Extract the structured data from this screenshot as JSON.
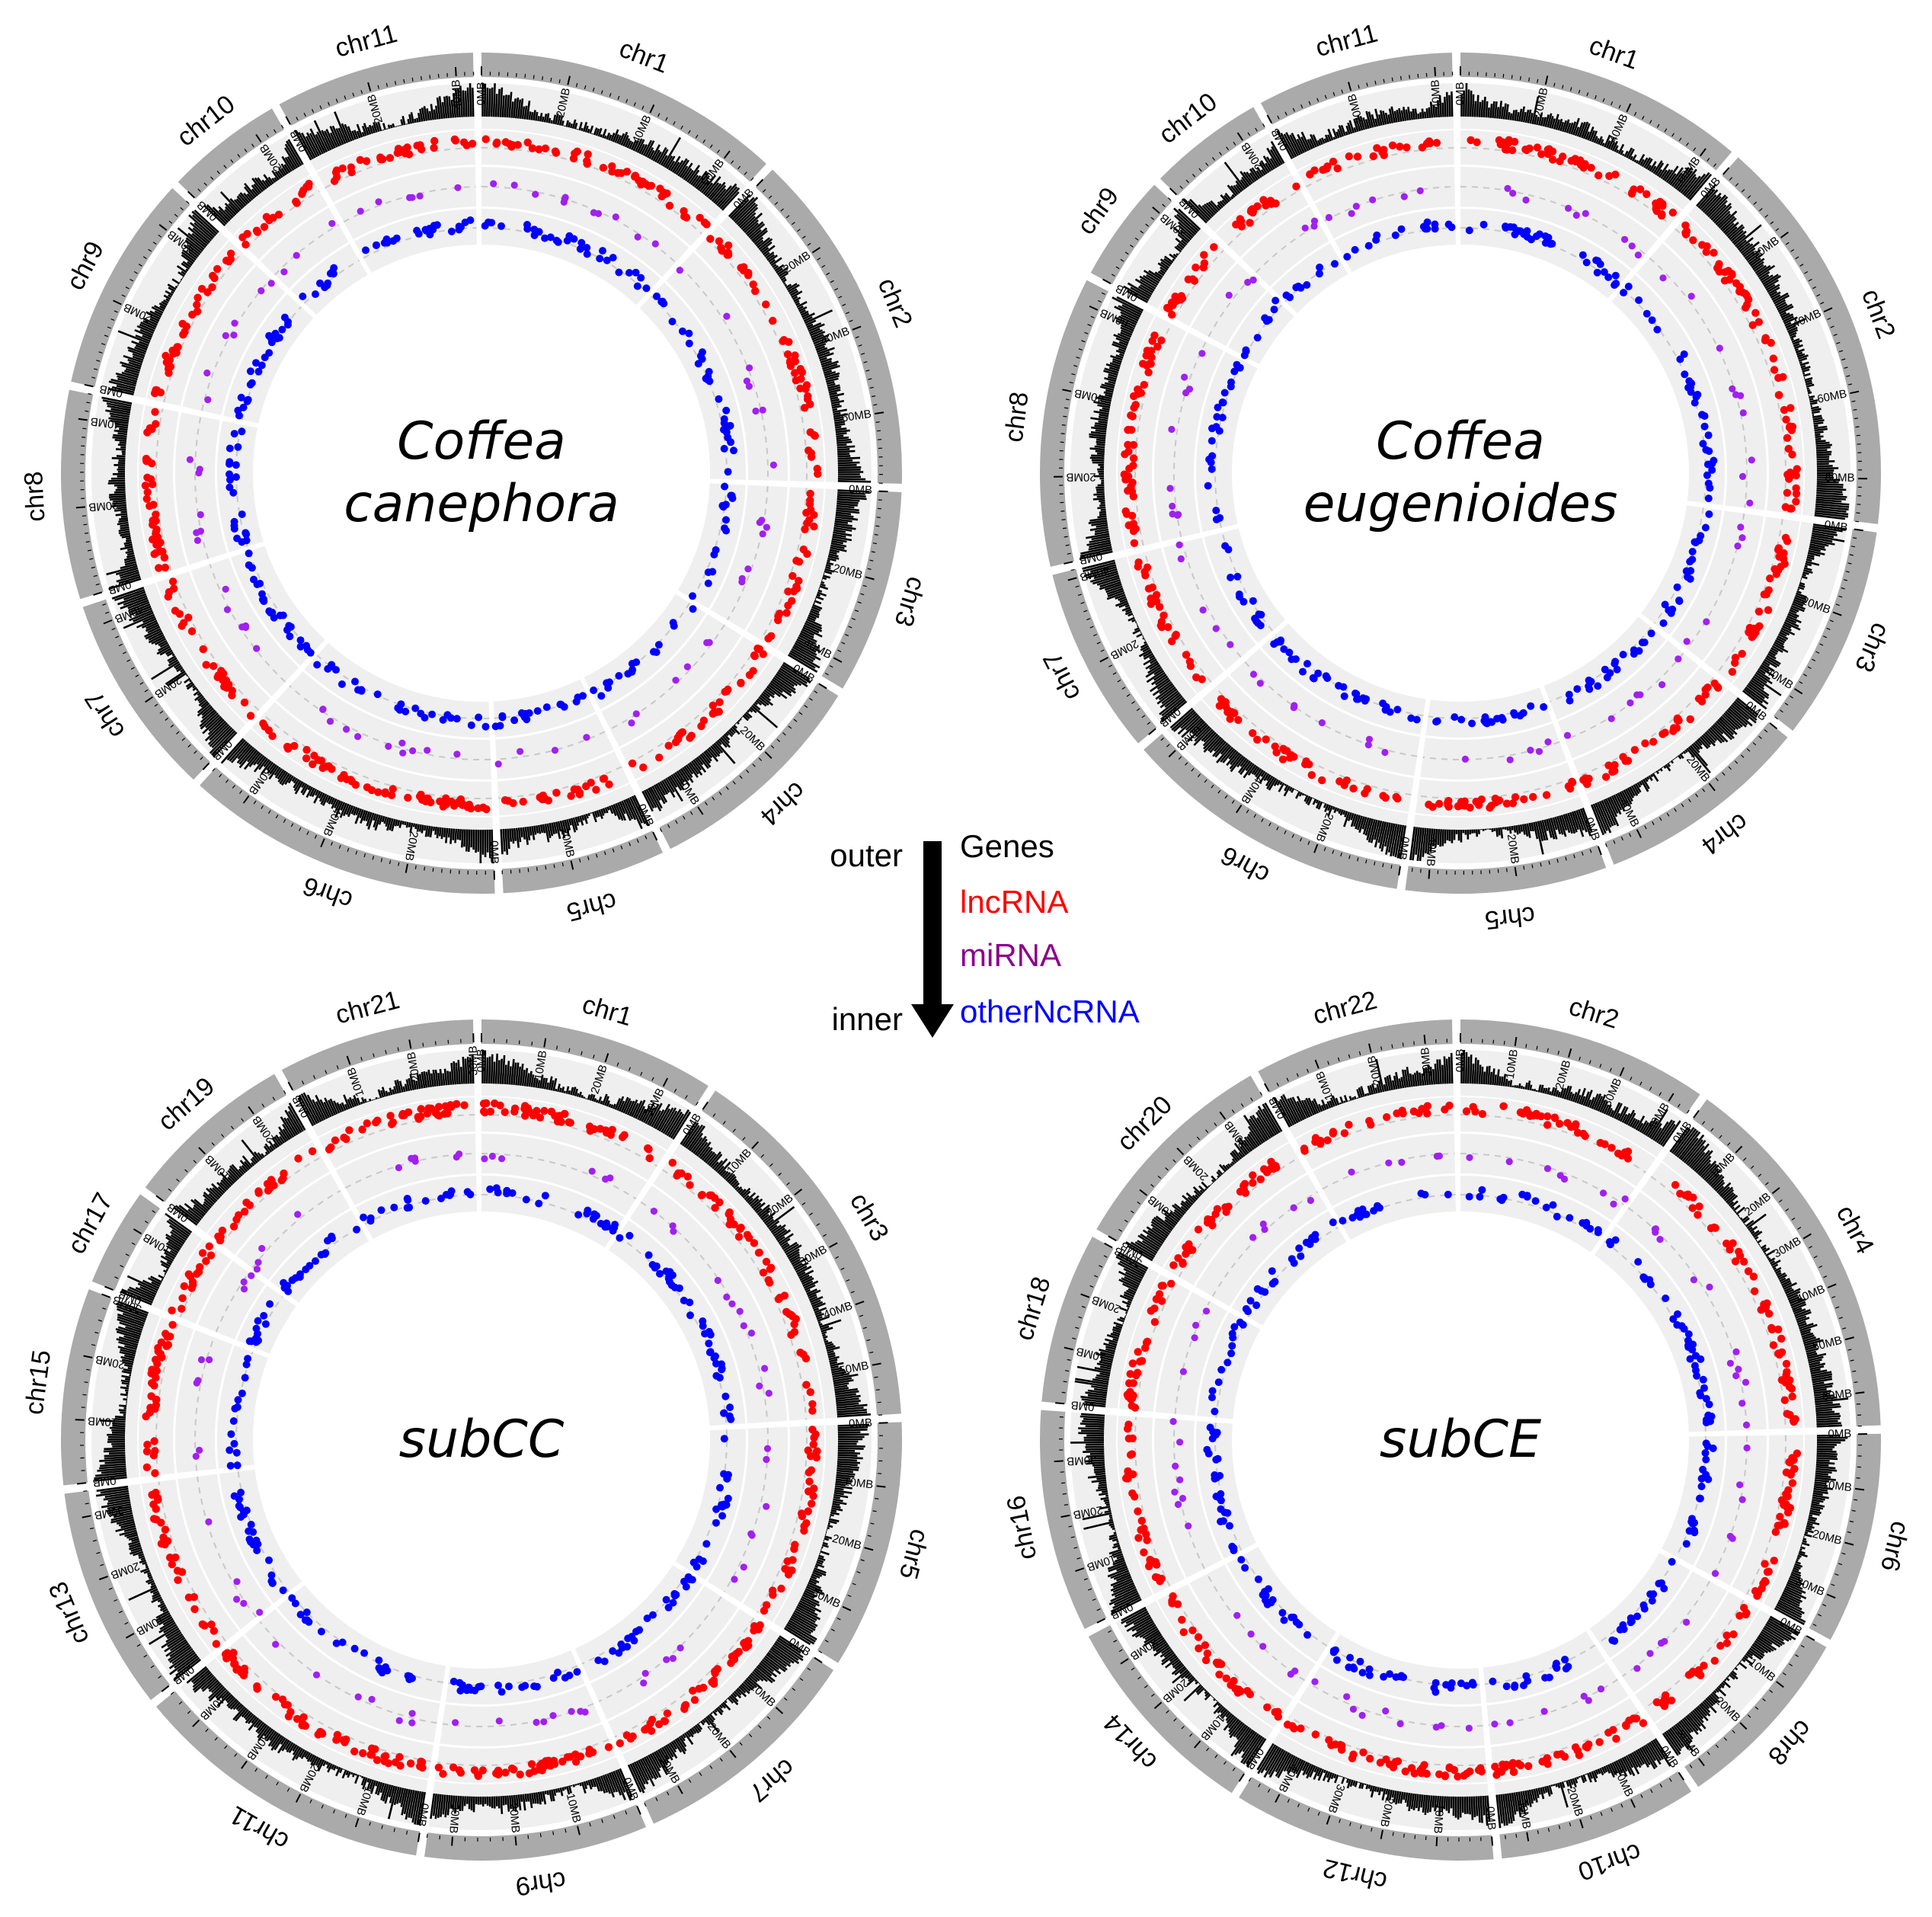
{
  "colors": {
    "ideogram": "#aaaaaa",
    "track_bg": "#efefef",
    "density": "#000000",
    "lncrna": "#ff0000",
    "mirna": "#a020f0",
    "other": "#0000ff",
    "legend_mirna_text": "#8b008b"
  },
  "legend": {
    "outer": "outer",
    "inner": "inner",
    "items": [
      {
        "label": "Genes",
        "color": "#000000"
      },
      {
        "label": "lncRNA",
        "color": "#ff0000"
      },
      {
        "label": "miRNA",
        "color": "#8b008b"
      },
      {
        "label": "otherNcRNA",
        "color": "#0000ff"
      }
    ]
  },
  "circos": [
    {
      "species_lines": [
        "Coffea",
        "canephora"
      ],
      "chromosomes": [
        {
          "name": "chr1",
          "length": 68
        },
        {
          "name": "chr2",
          "length": 76
        },
        {
          "name": "chr3",
          "length": 45
        },
        {
          "name": "chr4",
          "length": 50
        },
        {
          "name": "chr5",
          "length": 36
        },
        {
          "name": "chr6",
          "length": 70
        },
        {
          "name": "chr7",
          "length": 45
        },
        {
          "name": "chr8",
          "length": 46
        },
        {
          "name": "chr9",
          "length": 48
        },
        {
          "name": "chr10",
          "length": 26
        },
        {
          "name": "chr11",
          "length": 44
        }
      ]
    },
    {
      "species_lines": [
        "Coffea",
        "eugenioides"
      ],
      "chromosomes": [
        {
          "name": "chr1",
          "length": 65
        },
        {
          "name": "chr2",
          "length": 90
        },
        {
          "name": "chr3",
          "length": 48
        },
        {
          "name": "chr4",
          "length": 48
        },
        {
          "name": "chr5",
          "length": 45
        },
        {
          "name": "chr6",
          "length": 65
        },
        {
          "name": "chr7",
          "length": 42
        },
        {
          "name": "chr8",
          "length": 65
        },
        {
          "name": "chr9",
          "length": 24
        },
        {
          "name": "chr10",
          "length": 26
        },
        {
          "name": "chr11",
          "length": 44
        }
      ]
    },
    {
      "species_lines": [
        "subCC"
      ],
      "chromosomes": [
        {
          "name": "chr1",
          "length": 36
        },
        {
          "name": "chr3",
          "length": 58
        },
        {
          "name": "chr5",
          "length": 38
        },
        {
          "name": "chr7",
          "length": 36
        },
        {
          "name": "chr9",
          "length": 34
        },
        {
          "name": "chr11",
          "length": 46
        },
        {
          "name": "chr13",
          "length": 34
        },
        {
          "name": "chr15",
          "length": 30
        },
        {
          "name": "chr17",
          "length": 15
        },
        {
          "name": "chr19",
          "length": 26
        },
        {
          "name": "chr21",
          "length": 30
        }
      ]
    },
    {
      "species_lines": [
        "subCE"
      ],
      "chromosomes": [
        {
          "name": "chr2",
          "length": 44
        },
        {
          "name": "chr4",
          "length": 66
        },
        {
          "name": "chr6",
          "length": 37
        },
        {
          "name": "chr8",
          "length": 33
        },
        {
          "name": "chr10",
          "length": 35
        },
        {
          "name": "chr12",
          "length": 46
        },
        {
          "name": "chr14",
          "length": 37
        },
        {
          "name": "chr16",
          "length": 39
        },
        {
          "name": "chr18",
          "length": 30
        },
        {
          "name": "chr20",
          "length": 38
        },
        {
          "name": "chr22",
          "length": 35
        }
      ]
    }
  ]
}
